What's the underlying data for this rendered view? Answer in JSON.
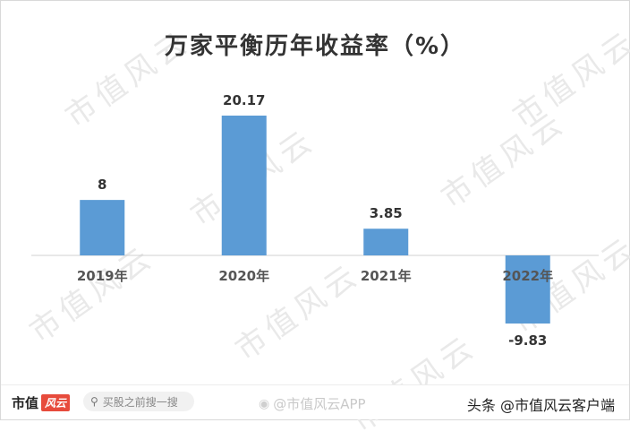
{
  "watermark_text": "市值风云",
  "footer": {
    "brand": "市值",
    "brand_mark": "风云",
    "search_placeholder": "买股之前搜一搜",
    "weibo_handle": "@市值风云APP",
    "source": "头条 @市值风云客户端"
  },
  "chart_data": {
    "type": "bar",
    "title": "万家平衡历年收益率（%）",
    "categories": [
      "2019年",
      "2020年",
      "2021年",
      "2022年"
    ],
    "values": [
      8,
      20.17,
      3.85,
      -9.83
    ],
    "value_labels": [
      "8",
      "20.17",
      "3.85",
      "-9.83"
    ],
    "xlabel": "",
    "ylabel": "",
    "ylim": [
      -9.83,
      20.17
    ],
    "grid": false,
    "legend": "none",
    "bar_color": "#5b9bd5"
  }
}
